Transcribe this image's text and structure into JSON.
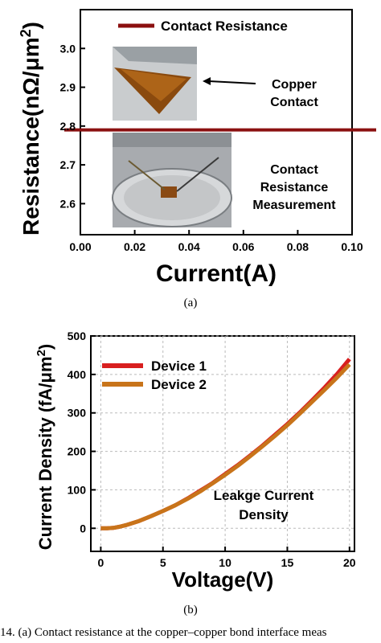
{
  "chart_data": [
    {
      "panel": "(a)",
      "type": "line",
      "xlabel": "Current(A)",
      "ylabel": "Resistance(nΩ/μm",
      "ylabel_sup": "2",
      "ylabel_close": ")",
      "xlim": [
        0.0,
        0.1
      ],
      "ylim": [
        2.52,
        3.1
      ],
      "xticks": [
        "0.00",
        "0.02",
        "0.04",
        "0.06",
        "0.08",
        "0.10"
      ],
      "yticks": [
        "2.6",
        "2.7",
        "2.8",
        "2.9",
        "3.0"
      ],
      "legend": {
        "position": "top",
        "label": "Contact Resistance",
        "color": "#8b1010"
      },
      "series": [
        {
          "name": "Contact Resistance",
          "color": "#8b1010",
          "x": [
            0.0,
            0.02,
            0.04,
            0.06,
            0.08,
            0.1
          ],
          "y": [
            2.79,
            2.79,
            2.79,
            2.79,
            2.79,
            2.79
          ]
        }
      ],
      "annotations": [
        {
          "id": "copper",
          "lines": [
            "Copper",
            "Contact"
          ]
        },
        {
          "id": "measurement",
          "lines": [
            "Contact",
            "Resistance",
            "Measurement"
          ]
        }
      ]
    },
    {
      "panel": "(b)",
      "type": "line",
      "xlabel": "Voltage(V)",
      "ylabel": "Current Density (fA/μm",
      "ylabel_sup": "2",
      "ylabel_close": ")",
      "xlim": [
        -0.8,
        20.4
      ],
      "ylim": [
        -60,
        500
      ],
      "xticks": [
        "0",
        "5",
        "10",
        "15",
        "20"
      ],
      "yticks": [
        "0",
        "100",
        "200",
        "300",
        "400",
        "500"
      ],
      "grid": true,
      "legend": {
        "position": "top-left"
      },
      "series": [
        {
          "name": "Device 1",
          "color": "#d81f1f",
          "x": [
            0,
            0.5,
            1,
            1.5,
            2,
            3,
            4,
            5,
            6,
            7,
            8,
            9,
            10,
            11,
            12,
            13,
            14,
            15,
            16,
            17,
            18,
            19,
            20
          ],
          "y": [
            0,
            0,
            1,
            4,
            8,
            18,
            31,
            45,
            60,
            78,
            98,
            118,
            141,
            164,
            189,
            215,
            243,
            271,
            301,
            333,
            366,
            401,
            440
          ]
        },
        {
          "name": "Device 2",
          "color": "#c8741a",
          "x": [
            0,
            0.5,
            1,
            1.5,
            2,
            3,
            4,
            5,
            6,
            7,
            8,
            9,
            10,
            11,
            12,
            13,
            14,
            15,
            16,
            17,
            18,
            19,
            20
          ],
          "y": [
            0,
            0,
            1,
            4,
            8,
            18,
            31,
            45,
            60,
            77,
            96,
            117,
            139,
            162,
            187,
            213,
            240,
            268,
            298,
            329,
            360,
            392,
            426
          ]
        }
      ],
      "annotations": [
        {
          "id": "leakage",
          "lines": [
            "Leakge Current",
            "Density"
          ]
        }
      ]
    }
  ],
  "captions": {
    "a": "(a)",
    "b": "(b)",
    "figure": "14.   (a) Contact resistance at the copper–copper bond interface meas"
  }
}
